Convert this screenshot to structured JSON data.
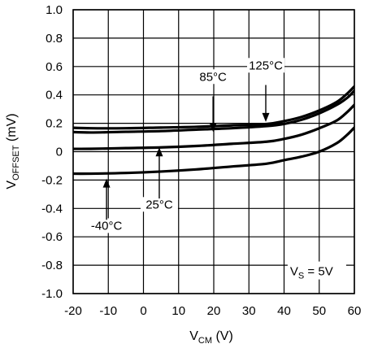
{
  "chart_data": {
    "type": "line",
    "xlabel_main": "V",
    "xlabel_sub": "CM",
    "xlabel_unit": " (V)",
    "ylabel_main": "V",
    "ylabel_sub": "OFFSET",
    "ylabel_unit": " (mV)",
    "xlim": [
      -20,
      60
    ],
    "ylim": [
      -1.0,
      1.0
    ],
    "xticks": [
      "-20",
      "-10",
      "0",
      "10",
      "20",
      "30",
      "40",
      "50",
      "60"
    ],
    "yticks": [
      "1.0",
      "0.8",
      "0.6",
      "0.4",
      "0.2",
      "0",
      "-0.2",
      "-0.4",
      "-0.6",
      "-0.8",
      "-1.0"
    ],
    "grid": true,
    "series": [
      {
        "name": "125°C",
        "points": [
          [
            -22,
            0.17
          ],
          [
            -15,
            0.165
          ],
          [
            -5,
            0.165
          ],
          [
            5,
            0.17
          ],
          [
            15,
            0.175
          ],
          [
            25,
            0.185
          ],
          [
            35,
            0.195
          ],
          [
            40,
            0.215
          ],
          [
            45,
            0.245
          ],
          [
            50,
            0.29
          ],
          [
            55,
            0.35
          ],
          [
            58,
            0.41
          ],
          [
            60,
            0.46
          ]
        ]
      },
      {
        "name": "85°C",
        "points": [
          [
            -22,
            0.14
          ],
          [
            -15,
            0.135
          ],
          [
            -5,
            0.14
          ],
          [
            5,
            0.145
          ],
          [
            15,
            0.155
          ],
          [
            25,
            0.165
          ],
          [
            35,
            0.18
          ],
          [
            40,
            0.195
          ],
          [
            45,
            0.225
          ],
          [
            50,
            0.27
          ],
          [
            55,
            0.33
          ],
          [
            58,
            0.38
          ],
          [
            60,
            0.43
          ]
        ]
      },
      {
        "name": "25°C",
        "points": [
          [
            -22,
            0.02
          ],
          [
            -15,
            0.02
          ],
          [
            -5,
            0.025
          ],
          [
            5,
            0.03
          ],
          [
            15,
            0.04
          ],
          [
            25,
            0.055
          ],
          [
            35,
            0.07
          ],
          [
            40,
            0.09
          ],
          [
            45,
            0.12
          ],
          [
            50,
            0.165
          ],
          [
            55,
            0.22
          ],
          [
            58,
            0.28
          ],
          [
            60,
            0.33
          ]
        ]
      },
      {
        "name": "-40°C",
        "points": [
          [
            -22,
            -0.155
          ],
          [
            -15,
            -0.155
          ],
          [
            -5,
            -0.15
          ],
          [
            5,
            -0.14
          ],
          [
            15,
            -0.125
          ],
          [
            25,
            -0.105
          ],
          [
            35,
            -0.085
          ],
          [
            40,
            -0.06
          ],
          [
            45,
            -0.035
          ],
          [
            50,
            0.0
          ],
          [
            55,
            0.06
          ],
          [
            58,
            0.12
          ],
          [
            60,
            0.17
          ]
        ]
      }
    ],
    "annotations": [
      {
        "text": "125°C",
        "label_x": 34.8,
        "label_y": 0.58,
        "arrow_from": [
          34.8,
          0.47
        ],
        "arrow_to": [
          34.8,
          0.21
        ]
      },
      {
        "text": "85°C",
        "label_x": 19.8,
        "label_y": 0.5,
        "arrow_from": [
          19.8,
          0.39
        ],
        "arrow_to": [
          19.8,
          0.14
        ]
      },
      {
        "text": "25°C",
        "label_x": 4.5,
        "label_y": -0.4,
        "arrow_from": [
          4.5,
          -0.33
        ],
        "arrow_to": [
          4.5,
          0.03
        ]
      },
      {
        "text": "-40°C",
        "label_x": -10.5,
        "label_y": -0.55,
        "arrow_from": [
          -10.5,
          -0.48
        ],
        "arrow_to": [
          -10.5,
          -0.19
        ]
      }
    ],
    "condition": {
      "main": "V",
      "sub": "S",
      "rest": " = 5V",
      "x": 50.5,
      "y": -0.86
    }
  }
}
